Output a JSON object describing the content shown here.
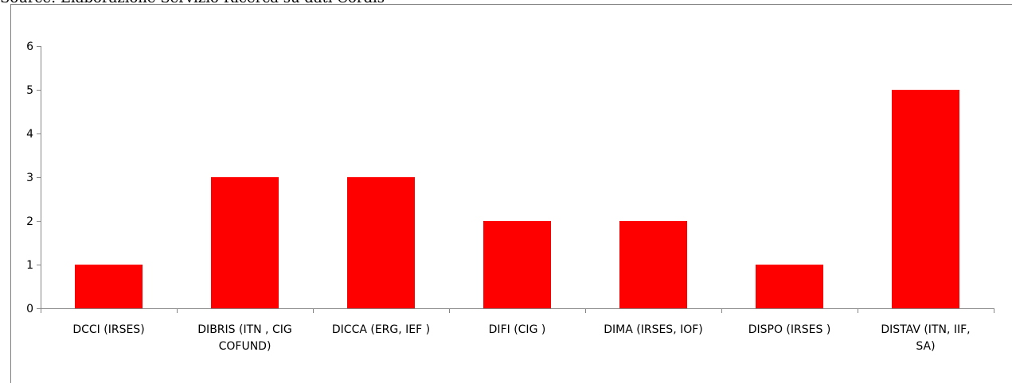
{
  "caption": "Source: Elaborazione Servizio Ricerca su dati Cordis",
  "chart_data": {
    "type": "bar",
    "categories": [
      [
        "DCCI (IRSES)"
      ],
      [
        "DIBRIS (ITN , CIG",
        "COFUND)"
      ],
      [
        "DICCA (ERG, IEF )"
      ],
      [
        "DIFI (CIG )"
      ],
      [
        "DIMA (IRSES, IOF)"
      ],
      [
        "DISPO (IRSES )"
      ],
      [
        "DISTAV (ITN, IIF,",
        "SA)"
      ]
    ],
    "values": [
      1,
      3,
      3,
      2,
      2,
      1,
      5
    ],
    "ylim": [
      0,
      6
    ],
    "yticks": [
      0,
      1,
      2,
      3,
      4,
      5,
      6
    ],
    "grid": false,
    "legend": "none",
    "bar_color": "#ff0000",
    "axis_color": "#868686",
    "frame_color": "#808080"
  }
}
